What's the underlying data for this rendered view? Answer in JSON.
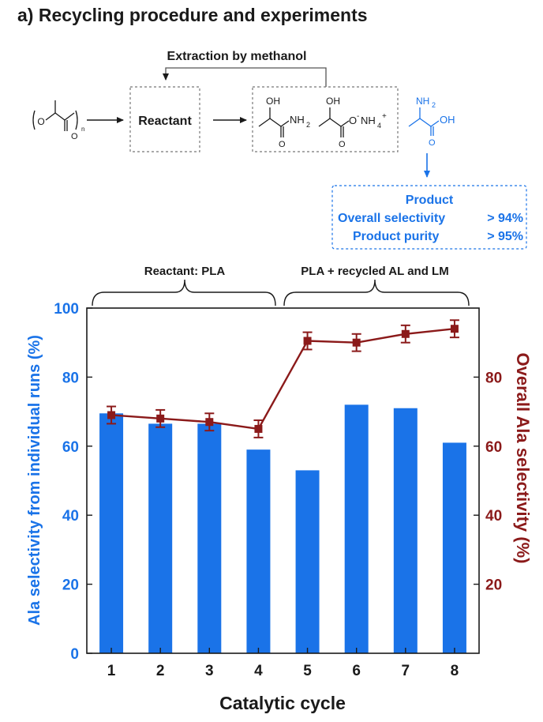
{
  "title": "a) Recycling procedure and experiments",
  "scheme": {
    "extraction_label": "Extraction by methanol",
    "reactant_box": "Reactant",
    "polymer_subscript": "n",
    "amide_oh": "OH",
    "amide_nh2": "NH",
    "amide_nh2_sub": "2",
    "salt_oh": "OH",
    "salt_o": "O",
    "salt_minus": "-",
    "salt_nh4": "NH",
    "salt_nh4_sub": "4",
    "salt_plus": "+",
    "ala_nh2": "NH",
    "ala_nh2_sub": "2",
    "ala_oh": "OH",
    "carbonyl_o": "O",
    "polymer_o": "O",
    "product_title": "Product",
    "product_line1_label": "Overall selectivity",
    "product_line1_value": "> 94%",
    "product_line2_label": "Product purity",
    "product_line2_value": "> 95%"
  },
  "colors": {
    "blue": "#1a73e8",
    "darkred": "#8b1a1a",
    "black": "#1a1a1a"
  },
  "chart_data": {
    "type": "bar",
    "categories": [
      "1",
      "2",
      "3",
      "4",
      "5",
      "6",
      "7",
      "8"
    ],
    "xlabel": "Catalytic cycle",
    "brackets": [
      "Reactant: PLA",
      "PLA + recycled AL and LM"
    ],
    "series": [
      {
        "type": "bar",
        "axis": "left",
        "values": [
          69.5,
          66.5,
          66.5,
          59,
          53,
          72,
          71,
          61
        ]
      },
      {
        "type": "line",
        "axis": "right",
        "values": [
          69,
          68,
          67,
          65,
          90.5,
          90,
          92.5,
          94
        ],
        "errors": [
          2.5,
          2.5,
          2.5,
          2.5,
          2.5,
          2.5,
          2.5,
          2.5
        ]
      }
    ],
    "left_axis": {
      "label": "Ala selectivity from individual runs (%)",
      "ylim": [
        0,
        100
      ],
      "ticks": [
        0,
        20,
        40,
        60,
        80,
        100
      ]
    },
    "right_axis": {
      "label": "Overall Ala selectivity (%)",
      "ylim": [
        0,
        100
      ],
      "ticks": [
        20,
        40,
        60,
        80
      ]
    }
  }
}
